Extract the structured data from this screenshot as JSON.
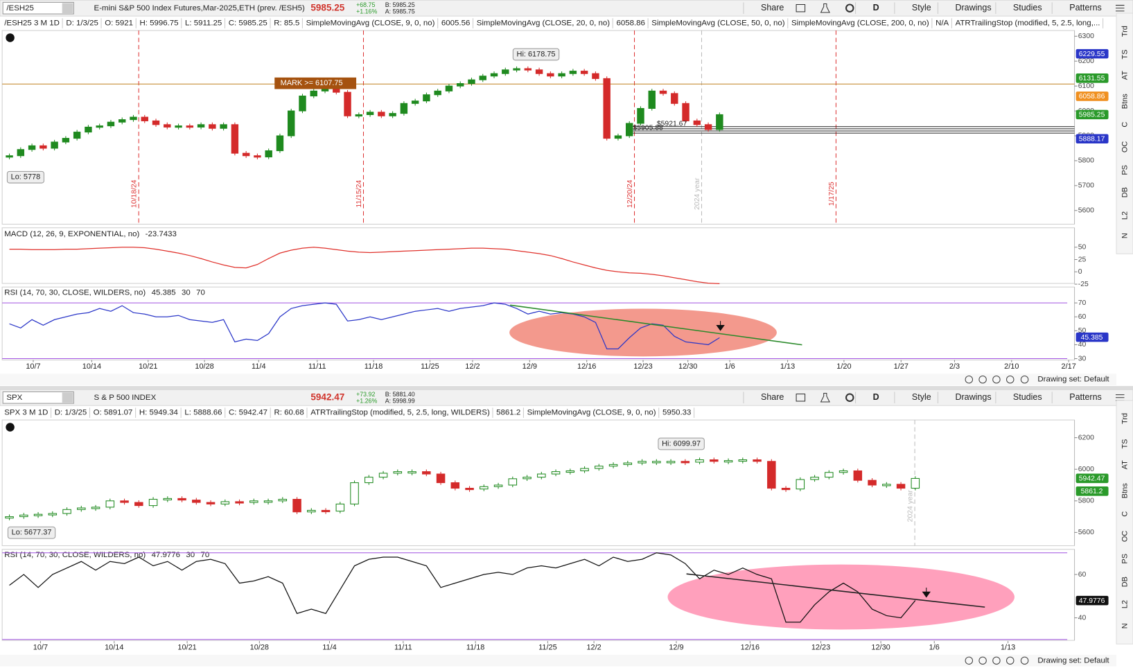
{
  "top": {
    "toolbar": {
      "symbol": "/ESH25",
      "description": "E-mini S&P 500 Index Futures,Mar-2025,ETH (prev. /ESH5)",
      "last": "5985.25",
      "change": "+68.75",
      "change_pct": "+1.16%",
      "bid": "B: 5985.25",
      "ask": "A: 5985.75",
      "buttons": [
        "Share",
        "D",
        "Style",
        "Drawings",
        "Studies",
        "Patterns"
      ]
    },
    "header": [
      {
        "text": "/ESH25 3 M 1D",
        "color": "#111"
      },
      {
        "text": "D: 1/3/25",
        "color": "#222"
      },
      {
        "text": "O: 5921",
        "color": "#222"
      },
      {
        "text": "H: 5996.75",
        "color": "#222"
      },
      {
        "text": "L: 5911.25",
        "color": "#222"
      },
      {
        "text": "C: 5985.25",
        "color": "#222"
      },
      {
        "text": "R: 85.5",
        "color": "#222"
      },
      {
        "text": "SimpleMovingAvg (CLOSE, 9, 0, no)",
        "color": "#e0312b"
      },
      {
        "text": "6005.56",
        "color": "#e0312b"
      },
      {
        "text": "SimpleMovingAvg (CLOSE, 20, 0, no)",
        "color": "#f0a030"
      },
      {
        "text": "6058.86",
        "color": "#f0a030"
      },
      {
        "text": "SimpleMovingAvg (CLOSE, 50, 0, no)",
        "color": "#1cc4dc"
      },
      {
        "text": "SimpleMovingAvg (CLOSE, 200, 0, no)",
        "color": "#2f8f2f"
      },
      {
        "text": "N/A",
        "color": "#2f8f2f"
      },
      {
        "text": "ATRTrailingStop (modified, 5, 2.5, long,...",
        "color": "#2f8f2f"
      }
    ],
    "price": {
      "ylim": [
        5545,
        6323
      ],
      "yticks": [
        5600,
        5700,
        5800,
        5900,
        6000,
        6100,
        6200,
        6300
      ],
      "tags": [
        {
          "value": 6229.55,
          "color": "#2a36c8"
        },
        {
          "value": 6131.55,
          "color": "#2a9a2a"
        },
        {
          "value": 6058.86,
          "color": "#f09020"
        },
        {
          "value": 5985.25,
          "color": "#2a9a2a"
        },
        {
          "value": 5888.17,
          "color": "#2a36c8"
        }
      ],
      "closes": [
        5820,
        5845,
        5860,
        5850,
        5875,
        5890,
        5915,
        5935,
        5940,
        5955,
        5965,
        5975,
        5960,
        5945,
        5935,
        5940,
        5935,
        5945,
        5930,
        5945,
        5830,
        5820,
        5815,
        5840,
        5900,
        6000,
        6060,
        6080,
        6090,
        6075,
        5980,
        5985,
        5995,
        5980,
        5990,
        6030,
        6040,
        6065,
        6080,
        6100,
        6110,
        6125,
        6140,
        6150,
        6165,
        6170,
        6165,
        6150,
        6140,
        6150,
        6160,
        6150,
        6130,
        5890,
        5900,
        5950,
        6010,
        6080,
        6070,
        6030,
        5960,
        5945,
        5925,
        5985
      ],
      "up_color": "#1f8a1f",
      "down_color": "#d42a2a"
    },
    "annotations": {
      "high": "Hi: 6178.75",
      "low": "Lo: 5778",
      "mark": "MARK >= 6107.75",
      "level_1": "$5921.67",
      "level_2": "$5905.88"
    },
    "vlines": [
      "10/18/24",
      "11/15/24",
      "12/20/24",
      "2024 year",
      "1/17/25"
    ],
    "macd": {
      "label": "MACD (12, 26, 9, EXPONENTIAL, no)",
      "value": -23.7433,
      "ylim": [
        -23.5,
        63
      ],
      "yticks": [
        50,
        25,
        0,
        -25
      ],
      "color": "#e0312b",
      "values": [
        46,
        46,
        45,
        45,
        45,
        46,
        46,
        47,
        48,
        49,
        50,
        50,
        49,
        46,
        42,
        38,
        33,
        27,
        20,
        14,
        9,
        8,
        15,
        27,
        38,
        44,
        48,
        50,
        48,
        45,
        42,
        40,
        39,
        40,
        41,
        42,
        43,
        44,
        45,
        46,
        47,
        48,
        48,
        47,
        46,
        43,
        40,
        37,
        33,
        27,
        20,
        14,
        8,
        3,
        0,
        -2,
        -3,
        -5,
        -8,
        -12,
        -16,
        -20,
        -23,
        -24
      ]
    },
    "rsi": {
      "label": "RSI (14, 70, 30, CLOSE, WILDERS, no)",
      "value": 45.385,
      "oversold": 30,
      "overbought": 70,
      "ylim": [
        29,
        81.4
      ],
      "yticks": [
        70,
        60,
        50,
        40,
        30
      ],
      "color": "#2a36c8",
      "values": [
        55,
        52,
        58,
        54,
        58,
        60,
        62,
        63,
        66,
        64,
        68,
        63,
        62,
        60,
        60,
        61,
        58,
        57,
        56,
        58,
        42,
        44,
        43,
        48,
        60,
        66,
        68,
        69,
        70,
        69,
        57,
        58,
        60,
        58,
        60,
        62,
        64,
        65,
        66,
        64,
        66,
        67,
        68,
        70,
        69,
        66,
        62,
        64,
        62,
        63,
        62,
        60,
        56,
        37,
        37,
        45,
        52,
        55,
        54,
        46,
        42,
        41,
        40,
        45
      ]
    },
    "dates": [
      "10/7",
      "10/14",
      "10/21",
      "10/28",
      "11/4",
      "11/11",
      "11/18",
      "11/25",
      "12/2",
      "12/9",
      "12/16",
      "12/23",
      "12/30",
      "1/6",
      "1/13",
      "1/20",
      "1/27",
      "2/3",
      "2/10",
      "2/17"
    ]
  },
  "bottom": {
    "toolbar": {
      "symbol": "SPX",
      "description": "S & P 500 INDEX",
      "last": "5942.47",
      "change": "+73.92",
      "change_pct": "+1.26%",
      "bid": "B: 5881.40",
      "ask": "A: 5998.99",
      "buttons": [
        "Share",
        "D",
        "Style",
        "Drawings",
        "Studies",
        "Patterns"
      ]
    },
    "header": [
      {
        "text": "SPX 3 M 1D",
        "color": "#111"
      },
      {
        "text": "D: 1/3/25",
        "color": "#222"
      },
      {
        "text": "O: 5891.07",
        "color": "#222"
      },
      {
        "text": "H: 5949.34",
        "color": "#222"
      },
      {
        "text": "L: 5888.66",
        "color": "#222"
      },
      {
        "text": "C: 5942.47",
        "color": "#222"
      },
      {
        "text": "R: 60.68",
        "color": "#222"
      },
      {
        "text": "ATRTrailingStop (modified, 5, 2.5, long, WILDERS)",
        "color": "#2f8f2f"
      },
      {
        "text": "5861.2",
        "color": "#2f8f2f"
      },
      {
        "text": "SimpleMovingAvg (CLOSE, 9, 0, no)",
        "color": "#2f8f2f"
      },
      {
        "text": "5950.33",
        "color": "#2f8f2f"
      }
    ],
    "price": {
      "ylim": [
        5516,
        6312
      ],
      "yticks": [
        5600,
        5800,
        6000,
        6200
      ],
      "tags": [
        {
          "value": 5942.47,
          "color": "#2a9a2a"
        },
        {
          "value": 5861.2,
          "color": "#2a9a2a"
        }
      ],
      "closes": [
        5700,
        5710,
        5715,
        5720,
        5745,
        5755,
        5760,
        5800,
        5790,
        5770,
        5810,
        5815,
        5805,
        5790,
        5780,
        5795,
        5790,
        5800,
        5800,
        5810,
        5730,
        5740,
        5735,
        5780,
        5915,
        5950,
        5975,
        5985,
        5985,
        5970,
        5915,
        5880,
        5875,
        5890,
        5900,
        5940,
        5950,
        5970,
        5985,
        5990,
        6005,
        6020,
        6030,
        6040,
        6050,
        6050,
        6050,
        6045,
        6060,
        6050,
        6055,
        6060,
        6050,
        5880,
        5875,
        5935,
        5950,
        5980,
        5990,
        5930,
        5900,
        5905,
        5880,
        5942
      ],
      "up_color": "#1f8a1f",
      "down_color": "#d42a2a"
    },
    "annotations": {
      "high": "Hi: 6099.97",
      "low": "Lo: 5677.37"
    },
    "vlines": [
      "2024 year"
    ],
    "rsi": {
      "label": "RSI (14, 70, 30, CLOSE, WILDERS, no)",
      "value": 47.9776,
      "oversold": 30,
      "overbought": 70,
      "ylim": [
        29.6,
        71.6
      ],
      "yticks": [
        60,
        40
      ],
      "color": "#111",
      "values": [
        55,
        60,
        54,
        60,
        63,
        66,
        62,
        66,
        65,
        68,
        64,
        66,
        62,
        66,
        67,
        65,
        56,
        57,
        59,
        56,
        42,
        44,
        42,
        53,
        64,
        67,
        68,
        68,
        66,
        64,
        54,
        56,
        58,
        60,
        61,
        60,
        63,
        64,
        63,
        65,
        67,
        64,
        68,
        66,
        67,
        70,
        69,
        65,
        58,
        62,
        60,
        63,
        60,
        58,
        38,
        38,
        46,
        52,
        56,
        52,
        44,
        41,
        40,
        48
      ]
    },
    "dates": [
      "10/7",
      "10/14",
      "10/21",
      "10/28",
      "11/4",
      "11/11",
      "11/18",
      "11/25",
      "12/2",
      "12/9",
      "12/16",
      "12/23",
      "12/30",
      "1/6",
      "1/13"
    ]
  },
  "side_tabs": [
    "Trd",
    "TS",
    "AT",
    "Btns",
    "C",
    "OC",
    "PS",
    "DB",
    "L2",
    "N"
  ],
  "drawing_set": "Drawing set: Default"
}
